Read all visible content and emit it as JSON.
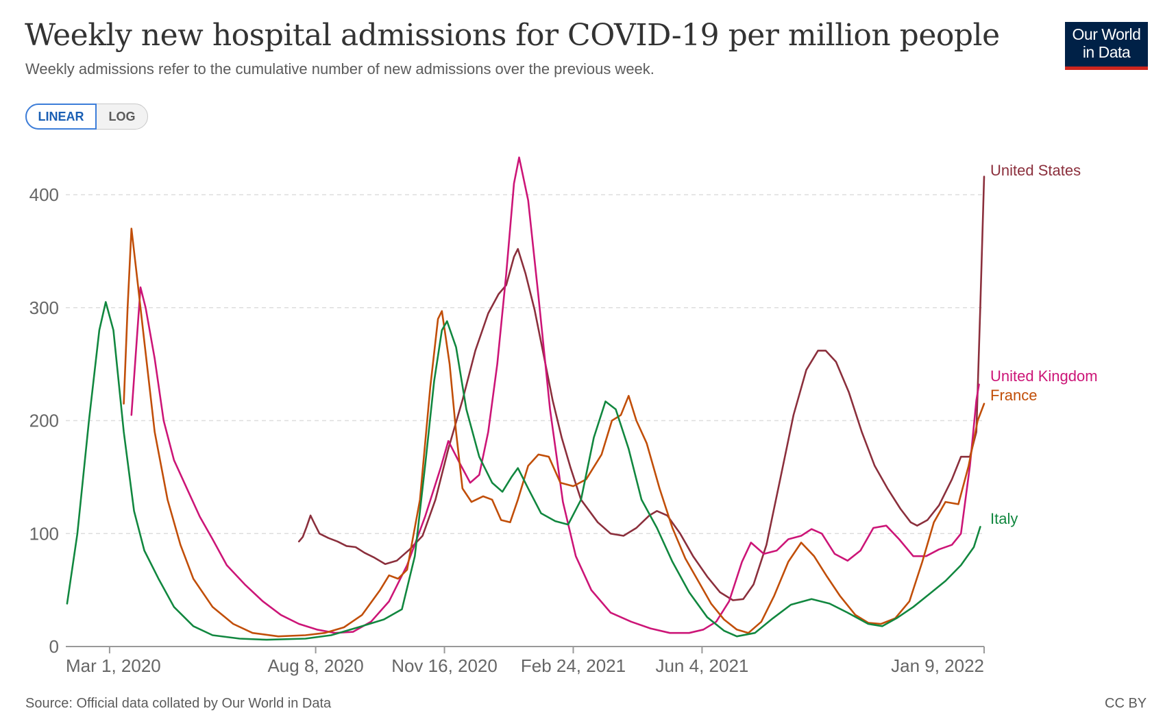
{
  "header": {
    "title": "Weekly new hospital admissions for COVID-19 per million people",
    "subtitle": "Weekly admissions refer to the cumulative number of new admissions over the previous week."
  },
  "logo": {
    "line1": "Our World",
    "line2": "in Data"
  },
  "scale_toggle": {
    "linear_label": "LINEAR",
    "log_label": "LOG",
    "selected": "LINEAR"
  },
  "footer": {
    "source": "Source: Official data collated by Our World in Data",
    "license": "CC BY"
  },
  "colors": {
    "United States": "#8b2f3c",
    "United Kingdom": "#cc1577",
    "France": "#c14e08",
    "Italy": "#11873f",
    "grid": "#dddddd",
    "axis_text": "#666666"
  },
  "chart_data": {
    "type": "line",
    "title": "Weekly new hospital admissions for COVID-19 per million people",
    "xlabel": "",
    "ylabel": "",
    "ylim": [
      0,
      400
    ],
    "yticks": [
      0,
      100,
      200,
      300,
      400
    ],
    "xticks": [
      "Mar 1, 2020",
      "Aug 8, 2020",
      "Nov 16, 2020",
      "Feb 24, 2021",
      "Jun 4, 2021",
      "Jan 9, 2022"
    ],
    "xlim": [
      "2020-01-27",
      "2022-01-09"
    ],
    "grid": "horizontal dashed",
    "legend": "inline labels at right end of lines",
    "series": [
      {
        "name": "United States",
        "points": [
          [
            "2020-07-26",
            93
          ],
          [
            "2020-07-29",
            97
          ],
          [
            "2020-08-01",
            106
          ],
          [
            "2020-08-04",
            116
          ],
          [
            "2020-08-07",
            109
          ],
          [
            "2020-08-11",
            100
          ],
          [
            "2020-08-18",
            96
          ],
          [
            "2020-08-25",
            93
          ],
          [
            "2020-09-01",
            89
          ],
          [
            "2020-09-08",
            88
          ],
          [
            "2020-09-15",
            83
          ],
          [
            "2020-09-22",
            79
          ],
          [
            "2020-10-01",
            73
          ],
          [
            "2020-10-10",
            76
          ],
          [
            "2020-10-20",
            86
          ],
          [
            "2020-10-30",
            98
          ],
          [
            "2020-11-09",
            130
          ],
          [
            "2020-11-19",
            175
          ],
          [
            "2020-11-30",
            218
          ],
          [
            "2020-12-10",
            262
          ],
          [
            "2020-12-20",
            295
          ],
          [
            "2020-12-28",
            312
          ],
          [
            "2021-01-03",
            320
          ],
          [
            "2021-01-09",
            345
          ],
          [
            "2021-01-12",
            352
          ],
          [
            "2021-01-18",
            330
          ],
          [
            "2021-01-25",
            298
          ],
          [
            "2021-02-01",
            258
          ],
          [
            "2021-02-08",
            218
          ],
          [
            "2021-02-15",
            185
          ],
          [
            "2021-02-22",
            158
          ],
          [
            "2021-03-02",
            130
          ],
          [
            "2021-03-15",
            110
          ],
          [
            "2021-03-25",
            100
          ],
          [
            "2021-04-04",
            98
          ],
          [
            "2021-04-14",
            105
          ],
          [
            "2021-04-24",
            116
          ],
          [
            "2021-04-30",
            120
          ],
          [
            "2021-05-08",
            116
          ],
          [
            "2021-05-18",
            100
          ],
          [
            "2021-05-28",
            80
          ],
          [
            "2021-06-08",
            62
          ],
          [
            "2021-06-18",
            48
          ],
          [
            "2021-06-28",
            41
          ],
          [
            "2021-07-06",
            42
          ],
          [
            "2021-07-14",
            55
          ],
          [
            "2021-07-24",
            90
          ],
          [
            "2021-08-04",
            150
          ],
          [
            "2021-08-14",
            205
          ],
          [
            "2021-08-24",
            245
          ],
          [
            "2021-09-02",
            262
          ],
          [
            "2021-09-08",
            262
          ],
          [
            "2021-09-16",
            252
          ],
          [
            "2021-09-26",
            225
          ],
          [
            "2021-10-06",
            190
          ],
          [
            "2021-10-16",
            160
          ],
          [
            "2021-10-26",
            140
          ],
          [
            "2021-11-05",
            122
          ],
          [
            "2021-11-13",
            110
          ],
          [
            "2021-11-18",
            107
          ],
          [
            "2021-11-26",
            112
          ],
          [
            "2021-12-05",
            125
          ],
          [
            "2021-12-15",
            148
          ],
          [
            "2021-12-22",
            168
          ],
          [
            "2021-12-29",
            168
          ],
          [
            "2022-01-03",
            190
          ],
          [
            "2022-01-06",
            300
          ],
          [
            "2022-01-09",
            416
          ]
        ]
      },
      {
        "name": "United Kingdom",
        "points": [
          [
            "2020-03-18",
            205
          ],
          [
            "2020-03-22",
            270
          ],
          [
            "2020-03-25",
            318
          ],
          [
            "2020-03-29",
            300
          ],
          [
            "2020-04-05",
            255
          ],
          [
            "2020-04-12",
            200
          ],
          [
            "2020-04-20",
            165
          ],
          [
            "2020-04-30",
            140
          ],
          [
            "2020-05-10",
            115
          ],
          [
            "2020-05-20",
            95
          ],
          [
            "2020-05-31",
            72
          ],
          [
            "2020-06-14",
            55
          ],
          [
            "2020-06-28",
            40
          ],
          [
            "2020-07-12",
            28
          ],
          [
            "2020-07-26",
            20
          ],
          [
            "2020-08-09",
            15
          ],
          [
            "2020-08-23",
            12
          ],
          [
            "2020-09-06",
            13
          ],
          [
            "2020-09-20",
            22
          ],
          [
            "2020-10-04",
            40
          ],
          [
            "2020-10-18",
            72
          ],
          [
            "2020-11-01",
            115
          ],
          [
            "2020-11-13",
            158
          ],
          [
            "2020-11-19",
            182
          ],
          [
            "2020-11-28",
            162
          ],
          [
            "2020-12-06",
            145
          ],
          [
            "2020-12-13",
            152
          ],
          [
            "2020-12-20",
            190
          ],
          [
            "2020-12-27",
            250
          ],
          [
            "2021-01-03",
            330
          ],
          [
            "2021-01-09",
            410
          ],
          [
            "2021-01-13",
            433
          ],
          [
            "2021-01-20",
            395
          ],
          [
            "2021-01-28",
            310
          ],
          [
            "2021-02-06",
            210
          ],
          [
            "2021-02-16",
            128
          ],
          [
            "2021-02-26",
            80
          ],
          [
            "2021-03-10",
            50
          ],
          [
            "2021-03-25",
            30
          ],
          [
            "2021-04-10",
            22
          ],
          [
            "2021-04-25",
            16
          ],
          [
            "2021-05-10",
            12
          ],
          [
            "2021-05-25",
            12
          ],
          [
            "2021-06-05",
            15
          ],
          [
            "2021-06-15",
            22
          ],
          [
            "2021-06-25",
            40
          ],
          [
            "2021-07-05",
            75
          ],
          [
            "2021-07-12",
            92
          ],
          [
            "2021-07-22",
            82
          ],
          [
            "2021-08-01",
            85
          ],
          [
            "2021-08-10",
            95
          ],
          [
            "2021-08-20",
            98
          ],
          [
            "2021-08-28",
            104
          ],
          [
            "2021-09-05",
            100
          ],
          [
            "2021-09-15",
            82
          ],
          [
            "2021-09-25",
            76
          ],
          [
            "2021-10-05",
            85
          ],
          [
            "2021-10-15",
            105
          ],
          [
            "2021-10-25",
            107
          ],
          [
            "2021-11-04",
            95
          ],
          [
            "2021-11-15",
            80
          ],
          [
            "2021-11-25",
            80
          ],
          [
            "2021-12-05",
            86
          ],
          [
            "2021-12-15",
            90
          ],
          [
            "2021-12-22",
            100
          ],
          [
            "2021-12-29",
            160
          ],
          [
            "2022-01-03",
            218
          ],
          [
            "2022-01-05",
            232
          ]
        ]
      },
      {
        "name": "France",
        "points": [
          [
            "2020-03-12",
            215
          ],
          [
            "2020-03-15",
            300
          ],
          [
            "2020-03-18",
            370
          ],
          [
            "2020-03-22",
            330
          ],
          [
            "2020-03-28",
            270
          ],
          [
            "2020-04-05",
            190
          ],
          [
            "2020-04-15",
            130
          ],
          [
            "2020-04-25",
            90
          ],
          [
            "2020-05-05",
            60
          ],
          [
            "2020-05-20",
            35
          ],
          [
            "2020-06-05",
            20
          ],
          [
            "2020-06-20",
            12
          ],
          [
            "2020-07-10",
            9
          ],
          [
            "2020-07-31",
            10
          ],
          [
            "2020-08-15",
            12
          ],
          [
            "2020-08-30",
            17
          ],
          [
            "2020-09-13",
            28
          ],
          [
            "2020-09-27",
            50
          ],
          [
            "2020-10-04",
            63
          ],
          [
            "2020-10-11",
            60
          ],
          [
            "2020-10-18",
            68
          ],
          [
            "2020-10-28",
            130
          ],
          [
            "2020-11-05",
            230
          ],
          [
            "2020-11-11",
            290
          ],
          [
            "2020-11-14",
            297
          ],
          [
            "2020-11-20",
            250
          ],
          [
            "2020-11-25",
            190
          ],
          [
            "2020-11-30",
            140
          ],
          [
            "2020-12-07",
            128
          ],
          [
            "2020-12-16",
            133
          ],
          [
            "2020-12-23",
            130
          ],
          [
            "2020-12-30",
            112
          ],
          [
            "2021-01-06",
            110
          ],
          [
            "2021-01-12",
            130
          ],
          [
            "2021-01-20",
            160
          ],
          [
            "2021-01-28",
            170
          ],
          [
            "2021-02-05",
            168
          ],
          [
            "2021-02-14",
            145
          ],
          [
            "2021-02-24",
            142
          ],
          [
            "2021-03-06",
            148
          ],
          [
            "2021-03-18",
            170
          ],
          [
            "2021-03-26",
            200
          ],
          [
            "2021-04-02",
            205
          ],
          [
            "2021-04-08",
            222
          ],
          [
            "2021-04-14",
            200
          ],
          [
            "2021-04-22",
            180
          ],
          [
            "2021-05-02",
            140
          ],
          [
            "2021-05-12",
            105
          ],
          [
            "2021-05-22",
            78
          ],
          [
            "2021-06-01",
            58
          ],
          [
            "2021-06-11",
            38
          ],
          [
            "2021-06-21",
            24
          ],
          [
            "2021-07-01",
            15
          ],
          [
            "2021-07-10",
            12
          ],
          [
            "2021-07-20",
            22
          ],
          [
            "2021-07-30",
            45
          ],
          [
            "2021-08-10",
            75
          ],
          [
            "2021-08-20",
            92
          ],
          [
            "2021-08-30",
            80
          ],
          [
            "2021-09-09",
            62
          ],
          [
            "2021-09-19",
            45
          ],
          [
            "2021-10-01",
            28
          ],
          [
            "2021-10-11",
            21
          ],
          [
            "2021-10-21",
            20
          ],
          [
            "2021-11-01",
            25
          ],
          [
            "2021-11-12",
            40
          ],
          [
            "2021-11-22",
            75
          ],
          [
            "2021-12-01",
            110
          ],
          [
            "2021-12-10",
            128
          ],
          [
            "2021-12-20",
            126
          ],
          [
            "2021-12-28",
            160
          ],
          [
            "2022-01-04",
            200
          ],
          [
            "2022-01-09",
            215
          ]
        ]
      },
      {
        "name": "Italy",
        "points": [
          [
            "2020-01-28",
            38
          ],
          [
            "2020-02-05",
            100
          ],
          [
            "2020-02-14",
            200
          ],
          [
            "2020-02-22",
            280
          ],
          [
            "2020-02-27",
            305
          ],
          [
            "2020-03-04",
            280
          ],
          [
            "2020-03-12",
            190
          ],
          [
            "2020-03-20",
            120
          ],
          [
            "2020-03-28",
            85
          ],
          [
            "2020-04-08",
            60
          ],
          [
            "2020-04-20",
            35
          ],
          [
            "2020-05-05",
            18
          ],
          [
            "2020-05-20",
            10
          ],
          [
            "2020-06-10",
            7
          ],
          [
            "2020-07-01",
            6
          ],
          [
            "2020-07-31",
            7
          ],
          [
            "2020-08-20",
            10
          ],
          [
            "2020-09-10",
            17
          ],
          [
            "2020-09-30",
            24
          ],
          [
            "2020-10-14",
            33
          ],
          [
            "2020-10-24",
            80
          ],
          [
            "2020-11-01",
            160
          ],
          [
            "2020-11-08",
            235
          ],
          [
            "2020-11-14",
            280
          ],
          [
            "2020-11-18",
            288
          ],
          [
            "2020-11-25",
            265
          ],
          [
            "2020-12-03",
            210
          ],
          [
            "2020-12-13",
            168
          ],
          [
            "2020-12-23",
            145
          ],
          [
            "2020-12-31",
            137
          ],
          [
            "2021-01-07",
            150
          ],
          [
            "2021-01-12",
            158
          ],
          [
            "2021-01-20",
            140
          ],
          [
            "2021-01-30",
            118
          ],
          [
            "2021-02-10",
            111
          ],
          [
            "2021-02-20",
            108
          ],
          [
            "2021-03-02",
            130
          ],
          [
            "2021-03-12",
            185
          ],
          [
            "2021-03-21",
            217
          ],
          [
            "2021-03-29",
            210
          ],
          [
            "2021-04-08",
            175
          ],
          [
            "2021-04-18",
            130
          ],
          [
            "2021-04-30",
            105
          ],
          [
            "2021-05-12",
            75
          ],
          [
            "2021-05-25",
            48
          ],
          [
            "2021-06-08",
            26
          ],
          [
            "2021-06-21",
            14
          ],
          [
            "2021-07-01",
            9
          ],
          [
            "2021-07-15",
            12
          ],
          [
            "2021-07-29",
            25
          ],
          [
            "2021-08-12",
            37
          ],
          [
            "2021-08-28",
            42
          ],
          [
            "2021-09-11",
            38
          ],
          [
            "2021-09-25",
            30
          ],
          [
            "2021-10-11",
            20
          ],
          [
            "2021-10-22",
            18
          ],
          [
            "2021-11-02",
            25
          ],
          [
            "2021-11-15",
            35
          ],
          [
            "2021-11-28",
            47
          ],
          [
            "2021-12-10",
            58
          ],
          [
            "2021-12-22",
            72
          ],
          [
            "2022-01-01",
            88
          ],
          [
            "2022-01-06",
            106
          ]
        ]
      }
    ],
    "labels": [
      {
        "series": "United States",
        "text": "United States"
      },
      {
        "series": "United Kingdom",
        "text": "United Kingdom"
      },
      {
        "series": "France",
        "text": "France"
      },
      {
        "series": "Italy",
        "text": "Italy"
      }
    ]
  }
}
